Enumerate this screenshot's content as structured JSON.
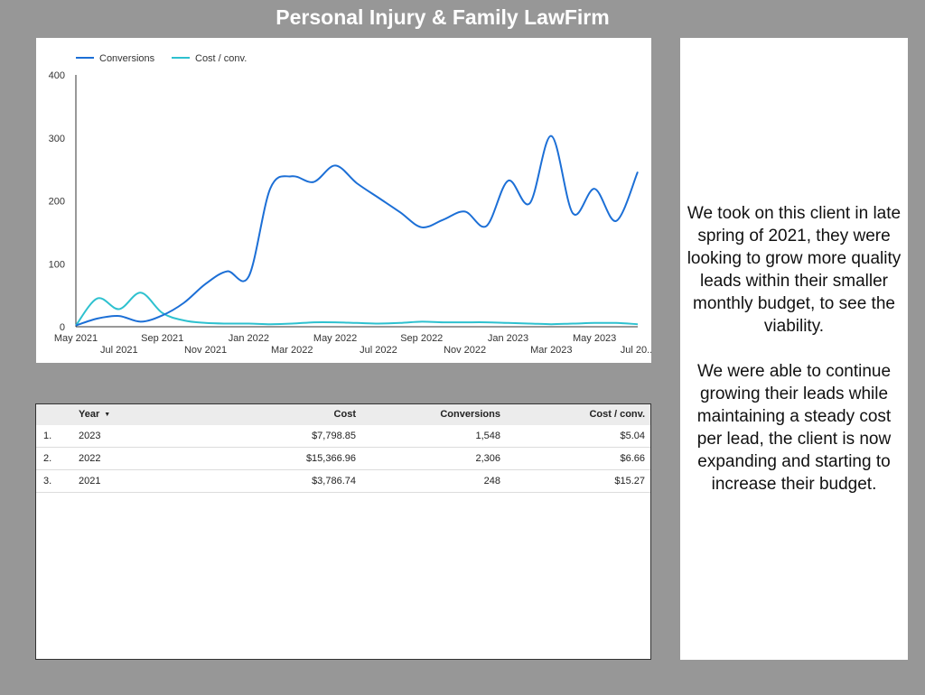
{
  "page_title": "Personal Injury & Family LawFirm",
  "colors": {
    "conversions": "#1c6fd6",
    "cost_per_conv": "#2ec1cf",
    "background": "#979797"
  },
  "chart_data": {
    "type": "line",
    "title": "",
    "xlabel": "",
    "ylabel": "",
    "ylim": [
      0,
      400
    ],
    "yticks": [
      "0",
      "100",
      "200",
      "300",
      "400"
    ],
    "legend_position": "top-left",
    "x": [
      "May 2021",
      "Jun 2021",
      "Jul 2021",
      "Aug 2021",
      "Sep 2021",
      "Oct 2021",
      "Nov 2021",
      "Dec 2021",
      "Jan 2022",
      "Feb 2022",
      "Mar 2022",
      "Apr 2022",
      "May 2022",
      "Jun 2022",
      "Jul 2022",
      "Aug 2022",
      "Sep 2022",
      "Oct 2022",
      "Nov 2022",
      "Dec 2022",
      "Jan 2023",
      "Feb 2023",
      "Mar 2023",
      "Apr 2023",
      "May 2023",
      "Jun 2023",
      "Jul 2023"
    ],
    "xtick_labels": [
      {
        "label": "May 2021",
        "index": 0,
        "row": 1
      },
      {
        "label": "Jul 2021",
        "index": 2,
        "row": 2
      },
      {
        "label": "Sep 2021",
        "index": 4,
        "row": 1
      },
      {
        "label": "Nov 2021",
        "index": 6,
        "row": 2
      },
      {
        "label": "Jan 2022",
        "index": 8,
        "row": 1
      },
      {
        "label": "Mar 2022",
        "index": 10,
        "row": 2
      },
      {
        "label": "May 2022",
        "index": 12,
        "row": 1
      },
      {
        "label": "Jul 2022",
        "index": 14,
        "row": 2
      },
      {
        "label": "Sep 2022",
        "index": 16,
        "row": 1
      },
      {
        "label": "Nov 2022",
        "index": 18,
        "row": 2
      },
      {
        "label": "Jan 2023",
        "index": 20,
        "row": 1
      },
      {
        "label": "Mar 2023",
        "index": 22,
        "row": 2
      },
      {
        "label": "May 2023",
        "index": 24,
        "row": 1
      },
      {
        "label": "Jul 20...",
        "index": 26,
        "row": 2
      }
    ],
    "series": [
      {
        "name": "Conversions",
        "values": [
          2,
          13,
          17,
          8,
          18,
          38,
          68,
          88,
          80,
          220,
          239,
          230,
          256,
          228,
          205,
          182,
          158,
          170,
          183,
          160,
          232,
          196,
          303,
          180,
          219,
          168,
          246
        ]
      },
      {
        "name": "Cost / conv.",
        "values": [
          2,
          45,
          28,
          54,
          22,
          10,
          6,
          5,
          5,
          4,
          5,
          7,
          7,
          6,
          5,
          6,
          8,
          7,
          7,
          7,
          6,
          5,
          4,
          5,
          6,
          6,
          4
        ]
      }
    ]
  },
  "table": {
    "columns": {
      "year": "Year",
      "cost": "Cost",
      "conversions": "Conversions",
      "cost_per_conv": "Cost / conv."
    },
    "rows": [
      {
        "index": "1.",
        "year": "2023",
        "cost": "$7,798.85",
        "conversions": "1,548",
        "cost_per_conv": "$5.04"
      },
      {
        "index": "2.",
        "year": "2022",
        "cost": "$15,366.96",
        "conversions": "2,306",
        "cost_per_conv": "$6.66"
      },
      {
        "index": "3.",
        "year": "2021",
        "cost": "$3,786.74",
        "conversions": "248",
        "cost_per_conv": "$15.27"
      }
    ]
  },
  "description": {
    "paragraph_1": "We took on this client in late spring of 2021, they were looking to grow more quality leads within their smaller monthly budget, to see the viability.",
    "paragraph_2": "We were able to continue growing their leads while maintaining a steady cost per lead, the client is now expanding and starting to increase their budget."
  }
}
